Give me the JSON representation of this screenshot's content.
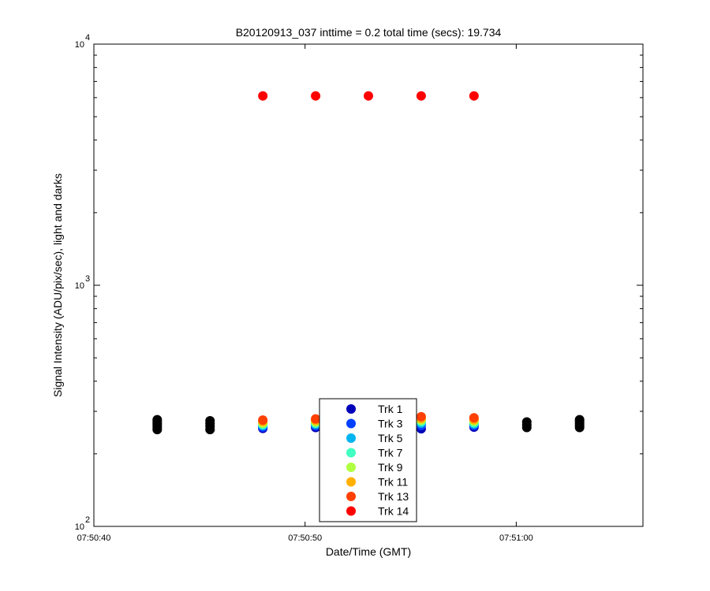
{
  "chart_data": {
    "type": "scatter",
    "title": "B20120913_037 inttime = 0.2 total time (secs): 19.734",
    "xlabel": "Date/Time (GMT)",
    "ylabel": "Signal Intensity (ADU/pix/sec), light and darks",
    "yscale": "log",
    "xlim": [
      "07:50:40",
      "07:51:06"
    ],
    "ylim": [
      100,
      10000
    ],
    "x_ticks": [
      "07:50:40",
      "07:50:50",
      "07:51:00"
    ],
    "y_ticks": [
      {
        "base": "10",
        "exp": "2",
        "value": 100
      },
      {
        "base": "10",
        "exp": "3",
        "value": 1000
      },
      {
        "base": "10",
        "exp": "4",
        "value": 10000
      }
    ],
    "grid": false,
    "legend_position": "bottom-center",
    "series": [
      {
        "name": "Trk 1",
        "color": "#0000b8",
        "points": [
          [
            "07:50:48",
            255
          ],
          [
            "07:50:50.5",
            257
          ],
          [
            "07:50:55.5",
            254
          ],
          [
            "07:50:58",
            258
          ]
        ]
      },
      {
        "name": "Trk 3",
        "color": "#0040ff",
        "points": [
          [
            "07:50:48",
            258
          ],
          [
            "07:50:50.5",
            261
          ],
          [
            "07:50:55.5",
            262
          ],
          [
            "07:50:58",
            262
          ]
        ]
      },
      {
        "name": "Trk 5",
        "color": "#00b4f0",
        "points": [
          [
            "07:50:48",
            262
          ],
          [
            "07:50:50.5",
            265
          ],
          [
            "07:50:55.5",
            268
          ],
          [
            "07:50:58",
            266
          ]
        ]
      },
      {
        "name": "Trk 7",
        "color": "#40ffc0",
        "points": [
          [
            "07:50:48",
            265
          ],
          [
            "07:50:50.5",
            268
          ],
          [
            "07:50:55.5",
            272
          ],
          [
            "07:50:58",
            269
          ]
        ]
      },
      {
        "name": "Trk 9",
        "color": "#b0ff40",
        "points": [
          [
            "07:50:48",
            268
          ],
          [
            "07:50:50.5",
            271
          ],
          [
            "07:50:55.5",
            276
          ],
          [
            "07:50:58",
            273
          ]
        ]
      },
      {
        "name": "Trk 11",
        "color": "#ffb000",
        "points": [
          [
            "07:50:48",
            272
          ],
          [
            "07:50:50.5",
            275
          ],
          [
            "07:50:55.5",
            280
          ],
          [
            "07:50:58",
            277
          ]
        ]
      },
      {
        "name": "Trk 13",
        "color": "#ff4000",
        "points": [
          [
            "07:50:48",
            276
          ],
          [
            "07:50:50.5",
            279
          ],
          [
            "07:50:55.5",
            285
          ],
          [
            "07:50:58",
            282
          ]
        ]
      },
      {
        "name": "Trk 14",
        "color": "#ff0000",
        "points": [
          [
            "07:50:48",
            6100
          ],
          [
            "07:50:50.5",
            6100
          ],
          [
            "07:50:53",
            6100
          ],
          [
            "07:50:55.5",
            6100
          ],
          [
            "07:50:58",
            6100
          ]
        ]
      }
    ],
    "dark_frames": {
      "color": "#000000",
      "points": [
        [
          "07:50:43",
          252
        ],
        [
          "07:50:43",
          257
        ],
        [
          "07:50:43",
          262
        ],
        [
          "07:50:43",
          267
        ],
        [
          "07:50:43",
          272
        ],
        [
          "07:50:43",
          277
        ],
        [
          "07:50:45.5",
          252
        ],
        [
          "07:50:45.5",
          260
        ],
        [
          "07:50:45.5",
          267
        ],
        [
          "07:50:45.5",
          274
        ],
        [
          "07:51:00.5",
          257
        ],
        [
          "07:51:00.5",
          264
        ],
        [
          "07:51:00.5",
          271
        ],
        [
          "07:51:03",
          257
        ],
        [
          "07:51:03",
          262
        ],
        [
          "07:51:03",
          267
        ],
        [
          "07:51:03",
          272
        ],
        [
          "07:51:03",
          277
        ]
      ]
    }
  }
}
